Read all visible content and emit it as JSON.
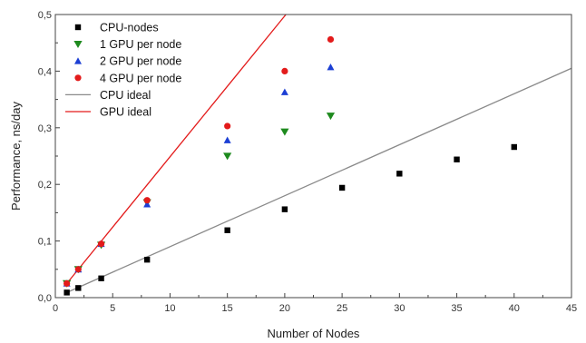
{
  "chart_data": {
    "type": "scatter",
    "xlabel": "Number of Nodes",
    "ylabel": "Performance, ns/day",
    "xlim": [
      0,
      45
    ],
    "ylim": [
      0,
      0.5
    ],
    "xticks": [
      0,
      5,
      10,
      15,
      20,
      25,
      30,
      35,
      40,
      45
    ],
    "yticks": [
      0,
      0.1,
      0.2,
      0.3,
      0.4,
      0.5
    ],
    "xtick_labels": [
      "0",
      "5",
      "10",
      "15",
      "20",
      "25",
      "30",
      "35",
      "40",
      "45"
    ],
    "ytick_labels": [
      "0,0",
      "0,1",
      "0,2",
      "0,3",
      "0,4",
      "0,5"
    ],
    "grid": false,
    "legend_position": "top-left",
    "series": [
      {
        "name": "CPU-nodes",
        "marker": "square",
        "color": "#000000",
        "x": [
          1,
          2,
          4,
          8,
          15,
          20,
          25,
          30,
          35,
          40
        ],
        "y": [
          0.009,
          0.017,
          0.034,
          0.067,
          0.119,
          0.156,
          0.194,
          0.219,
          0.244,
          0.266
        ]
      },
      {
        "name": "1 GPU per node",
        "marker": "triangle-down",
        "color": "#1e8a1e",
        "x": [
          1,
          2,
          4,
          8,
          15,
          20,
          24
        ],
        "y": [
          0.025,
          0.05,
          0.093,
          0.168,
          0.25,
          0.293,
          0.321
        ]
      },
      {
        "name": "2 GPU per node",
        "marker": "triangle-up",
        "color": "#1c3fd4",
        "x": [
          1,
          2,
          4,
          8,
          15,
          20,
          24
        ],
        "y": [
          0.025,
          0.05,
          0.095,
          0.165,
          0.278,
          0.363,
          0.407
        ]
      },
      {
        "name": "4 GPU per node",
        "marker": "circle",
        "color": "#e31b1b",
        "x": [
          1,
          2,
          4,
          8,
          15,
          20,
          24
        ],
        "y": [
          0.025,
          0.05,
          0.095,
          0.172,
          0.303,
          0.4,
          0.456
        ]
      },
      {
        "name": "CPU ideal",
        "line": true,
        "color": "#8a8a8a",
        "x": [
          1,
          45
        ],
        "y": [
          0.009,
          0.405
        ]
      },
      {
        "name": "GPU ideal",
        "line": true,
        "color": "#e31b1b",
        "x": [
          1,
          20.1
        ],
        "y": [
          0.025,
          0.5
        ]
      }
    ]
  }
}
